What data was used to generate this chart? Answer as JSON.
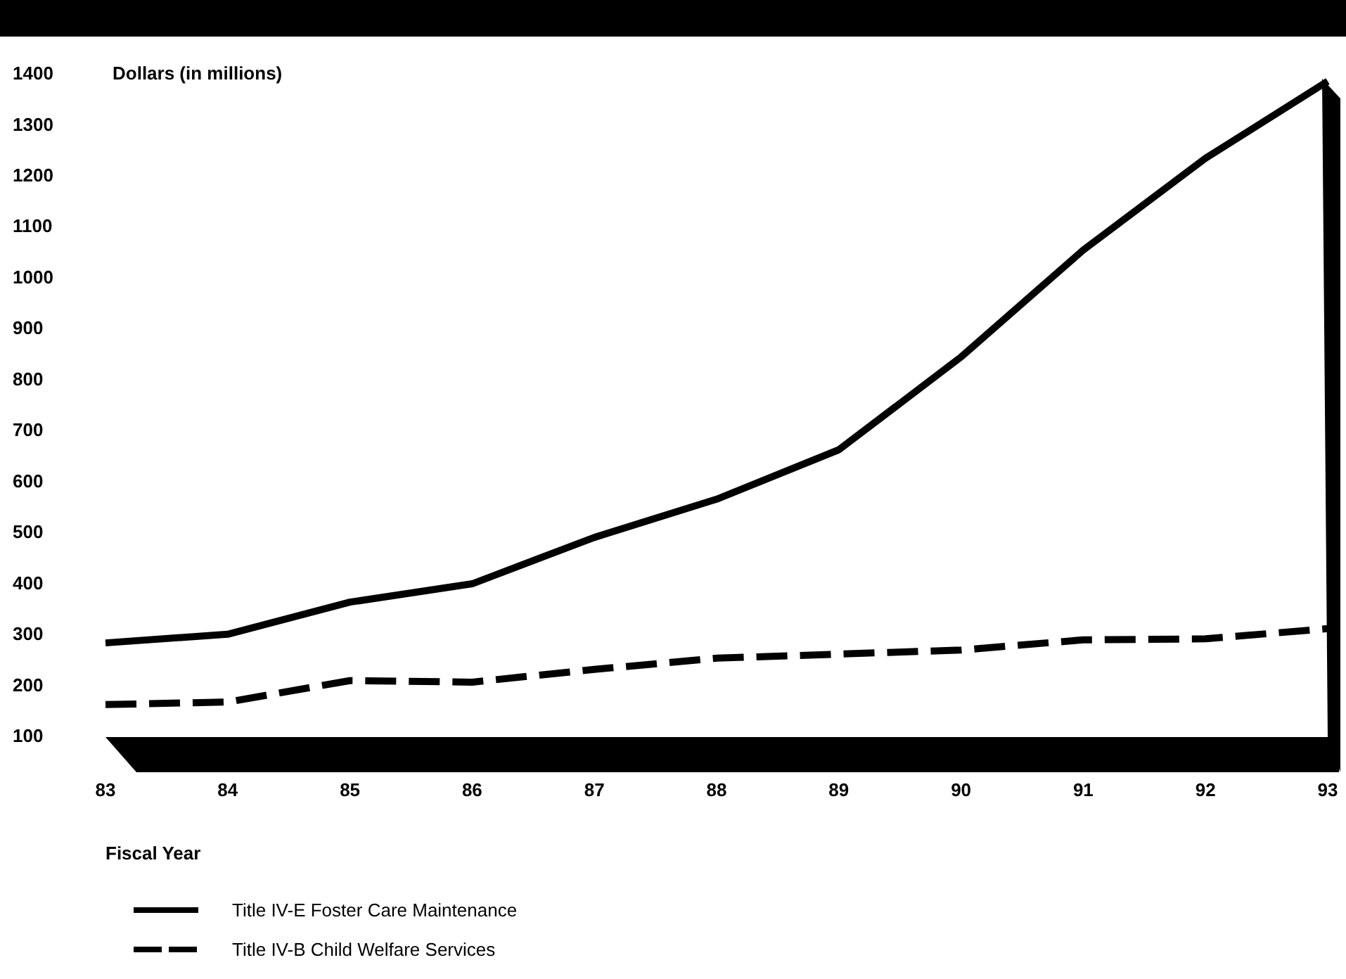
{
  "chart_data": {
    "type": "line",
    "ylabel": "Dollars (in millions)",
    "xlabel": "Fiscal Year",
    "x": [
      83,
      84,
      85,
      86,
      87,
      88,
      89,
      90,
      91,
      92,
      93
    ],
    "xlim": [
      83,
      93
    ],
    "xticks": [
      83,
      84,
      85,
      86,
      87,
      88,
      89,
      90,
      91,
      92,
      93
    ],
    "ylim": [
      100,
      1400
    ],
    "yticks": [
      100,
      200,
      300,
      400,
      500,
      600,
      700,
      800,
      900,
      1000,
      1100,
      1200,
      1300,
      1400
    ],
    "series": [
      {
        "name": "Title IV-E Foster Care Maintenance",
        "color": "#000000",
        "line_style": "solid",
        "values": [
          282,
          299,
          362,
          398,
          489,
          564,
          661,
          843,
          1053,
          1233,
          1384
        ]
      },
      {
        "name": "Title IV-B Child Welfare Services",
        "color": "#000000",
        "line_style": "dashed",
        "values": [
          161,
          166,
          208,
          205,
          230,
          252,
          260,
          268,
          288,
          290,
          310
        ]
      }
    ],
    "legend": "bottom left",
    "grid": false,
    "marker": "none"
  }
}
